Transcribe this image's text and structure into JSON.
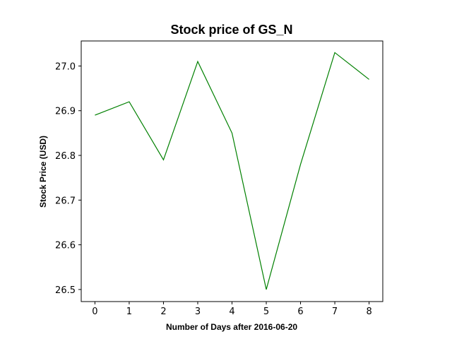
{
  "chart_data": {
    "type": "line",
    "title": "Stock price of GS_N",
    "xlabel": "Number of Days after 2016-06-20",
    "ylabel": "Stock Price (USD)",
    "x": [
      0,
      1,
      2,
      3,
      4,
      5,
      6,
      7,
      8
    ],
    "series": [
      {
        "values": [
          26.89,
          26.92,
          26.79,
          27.01,
          26.85,
          26.5,
          26.78,
          27.03,
          26.97
        ],
        "color": "#008000"
      }
    ],
    "xlim": [
      -0.4,
      8.4
    ],
    "ylim": [
      26.473,
      27.056
    ],
    "xticks": [
      0,
      1,
      2,
      3,
      4,
      5,
      6,
      7,
      8
    ],
    "yticks": [
      26.5,
      26.6,
      26.7,
      26.8,
      26.9,
      27.0
    ],
    "ytick_labels": [
      "26.5",
      "26.6",
      "26.7",
      "26.8",
      "26.9",
      "27.0"
    ],
    "grid": false
  }
}
